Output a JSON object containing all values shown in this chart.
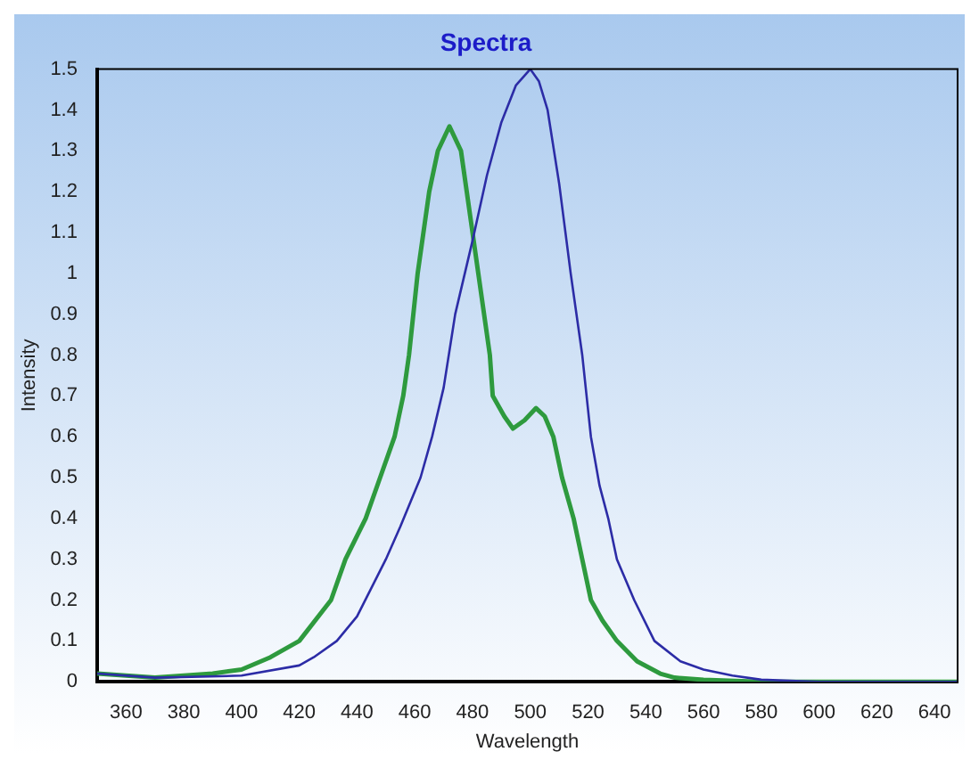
{
  "chart_data": {
    "type": "line",
    "title": "Spectra",
    "xlabel": "Wavelength",
    "ylabel": "Intensity",
    "xlim": [
      350,
      648
    ],
    "xticks": [
      360,
      380,
      400,
      420,
      440,
      460,
      480,
      500,
      520,
      540,
      560,
      580,
      600,
      620,
      640
    ],
    "ylim": [
      0,
      1.5
    ],
    "yticks": [
      0,
      0.1,
      0.2,
      0.3,
      0.4,
      0.5,
      0.6,
      0.7,
      0.8,
      0.9,
      1,
      1.1,
      1.2,
      1.3,
      1.4,
      1.5
    ],
    "grid": false,
    "legend": false,
    "marker": "none",
    "line_style": "solid",
    "series": [
      {
        "color": "#2e9a3e",
        "x": [
          350,
          370,
          390,
          400,
          410,
          420,
          431,
          436,
          443,
          448,
          453,
          456,
          458,
          461,
          465,
          468,
          472,
          476,
          478,
          482,
          486,
          487,
          491,
          494,
          498,
          502,
          505,
          508,
          511,
          515,
          518,
          521,
          525,
          530,
          537,
          545,
          550,
          560,
          580,
          600,
          648
        ],
        "values": [
          0.02,
          0.01,
          0.02,
          0.03,
          0.06,
          0.1,
          0.2,
          0.3,
          0.4,
          0.5,
          0.6,
          0.7,
          0.8,
          1.0,
          1.2,
          1.3,
          1.36,
          1.3,
          1.2,
          1.0,
          0.8,
          0.7,
          0.65,
          0.62,
          0.64,
          0.67,
          0.65,
          0.6,
          0.5,
          0.4,
          0.3,
          0.2,
          0.15,
          0.1,
          0.05,
          0.02,
          0.01,
          0.005,
          0,
          0,
          0
        ]
      },
      {
        "color": "#2c2ca6",
        "x": [
          350,
          370,
          400,
          420,
          425,
          433,
          440,
          450,
          455,
          462,
          466,
          470,
          474,
          480,
          485,
          490,
          495,
          500,
          503,
          506,
          510,
          514,
          518,
          521,
          524,
          527,
          530,
          536,
          543,
          552,
          560,
          570,
          580,
          600,
          648
        ],
        "values": [
          0.02,
          0.01,
          0.015,
          0.04,
          0.06,
          0.1,
          0.16,
          0.3,
          0.38,
          0.5,
          0.6,
          0.72,
          0.9,
          1.08,
          1.24,
          1.37,
          1.46,
          1.5,
          1.47,
          1.4,
          1.22,
          1.0,
          0.8,
          0.6,
          0.48,
          0.4,
          0.3,
          0.2,
          0.1,
          0.05,
          0.03,
          0.015,
          0.005,
          0,
          0
        ]
      }
    ]
  }
}
